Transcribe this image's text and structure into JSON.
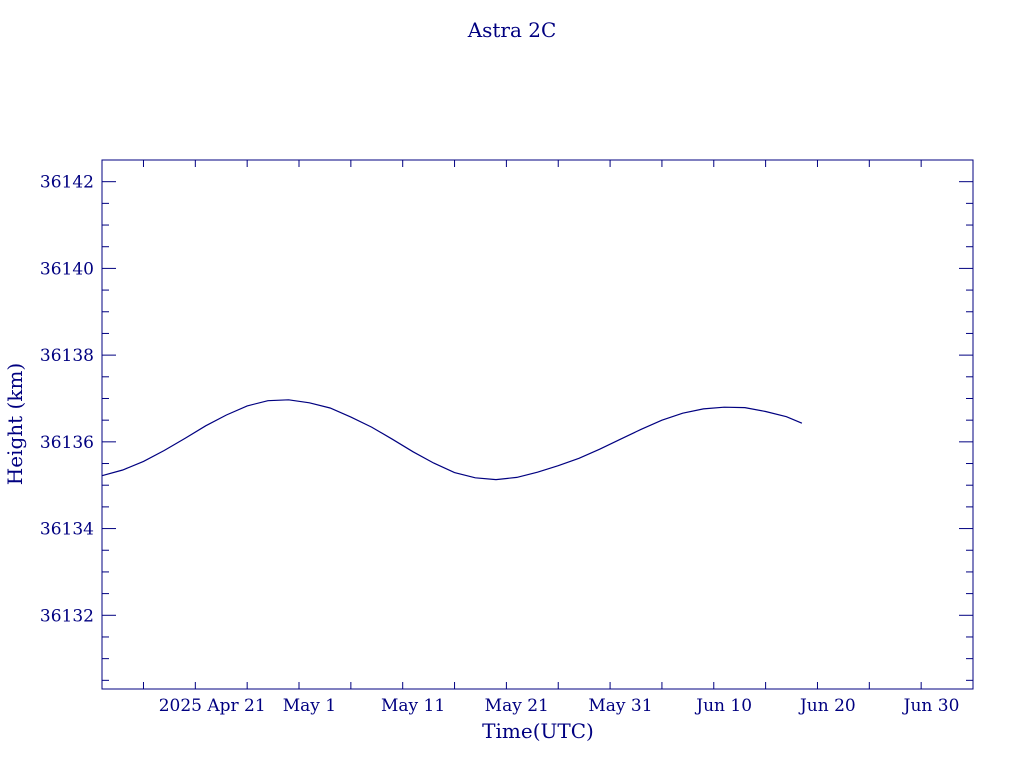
{
  "chart_data": {
    "type": "line",
    "title": "Astra 2C",
    "xlabel": "Time(UTC)",
    "ylabel": "Height (km)",
    "x_ticks": [
      {
        "label": "2025 Apr 21",
        "day": 21
      },
      {
        "label": "May  1",
        "day": 31
      },
      {
        "label": "May 11",
        "day": 41
      },
      {
        "label": "May 21",
        "day": 51
      },
      {
        "label": "May 31",
        "day": 61
      },
      {
        "label": "Jun 10",
        "day": 71
      },
      {
        "label": "Jun 20",
        "day": 81
      },
      {
        "label": "Jun 30",
        "day": 91
      }
    ],
    "xlim": [
      11,
      95
    ],
    "ylim": [
      36130.3,
      36142.5
    ],
    "y_ticks": [
      36132,
      36134,
      36136,
      36138,
      36140,
      36142
    ],
    "series": [
      {
        "values": [
          [
            11,
            36135.22
          ],
          [
            13,
            36135.35
          ],
          [
            15,
            36135.55
          ],
          [
            17,
            36135.8
          ],
          [
            19,
            36136.08
          ],
          [
            21,
            36136.37
          ],
          [
            23,
            36136.62
          ],
          [
            25,
            36136.83
          ],
          [
            27,
            36136.95
          ],
          [
            29,
            36136.97
          ],
          [
            31,
            36136.9
          ],
          [
            33,
            36136.78
          ],
          [
            35,
            36136.57
          ],
          [
            37,
            36136.34
          ],
          [
            39,
            36136.06
          ],
          [
            41,
            36135.77
          ],
          [
            43,
            36135.51
          ],
          [
            45,
            36135.29
          ],
          [
            47,
            36135.17
          ],
          [
            49,
            36135.13
          ],
          [
            51,
            36135.18
          ],
          [
            53,
            36135.3
          ],
          [
            55,
            36135.45
          ],
          [
            57,
            36135.62
          ],
          [
            59,
            36135.83
          ],
          [
            61,
            36136.06
          ],
          [
            63,
            36136.29
          ],
          [
            65,
            36136.5
          ],
          [
            67,
            36136.66
          ],
          [
            69,
            36136.76
          ],
          [
            71,
            36136.8
          ],
          [
            73,
            36136.79
          ],
          [
            75,
            36136.7
          ],
          [
            77,
            36136.58
          ],
          [
            78.5,
            36136.43
          ]
        ]
      }
    ],
    "grid": false,
    "colors": {
      "axis": "#000080",
      "line": "#000080",
      "text": "#000080"
    }
  }
}
